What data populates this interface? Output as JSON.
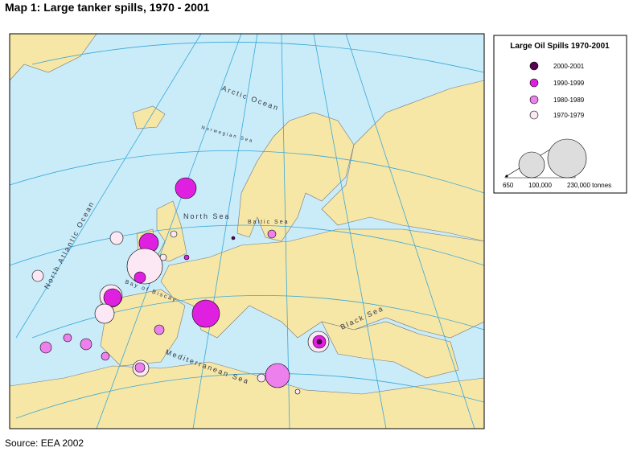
{
  "title": "Map 1: Large tanker spills, 1970 - 2001",
  "source": "Source: EEA 2002",
  "legend": {
    "title": "Large Oil Spills 1970-2001",
    "items": [
      "2000-2001",
      "1990-1999",
      "1980-1989",
      "1970-1979"
    ],
    "sizes": [
      "650",
      "100,000",
      "230,000 tonnes"
    ]
  },
  "map_labels": {
    "arctic": "Arctic Ocean",
    "atlantic": "North Atlantic Ocean",
    "norwegian": "Norwegian Sea",
    "north": "North Sea",
    "baltic": "Baltic Sea",
    "biscay": "Bay of Biscay",
    "black": "Black Sea",
    "med": "Mediterranean Sea"
  }
}
